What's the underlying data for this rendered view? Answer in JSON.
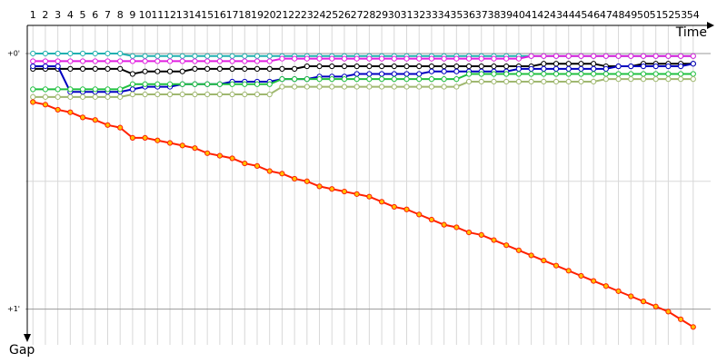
{
  "chart_data": {
    "type": "line",
    "x_label": "Time",
    "y_label": "Gap",
    "x": [
      1,
      2,
      3,
      4,
      5,
      6,
      7,
      8,
      9,
      10,
      11,
      12,
      13,
      14,
      15,
      16,
      17,
      18,
      19,
      20,
      21,
      22,
      23,
      24,
      25,
      26,
      27,
      28,
      29,
      30,
      31,
      32,
      33,
      34,
      35,
      36,
      37,
      38,
      39,
      40,
      41,
      42,
      43,
      44,
      45,
      46,
      47,
      48,
      49,
      50,
      51,
      52,
      53,
      54
    ],
    "xlim": [
      0.4,
      55.4
    ],
    "ylim": [
      -0.11,
      1.14
    ],
    "yticks": [
      {
        "value": 0,
        "label": "+0'"
      },
      {
        "value": 1,
        "label": "+1'"
      }
    ],
    "minor_yticks": [
      0.5
    ],
    "grid": true,
    "series": [
      {
        "color": "#20b0b0",
        "marker": "#ffffff",
        "values": [
          0,
          0,
          0,
          0,
          0,
          0,
          0,
          0,
          0.01,
          0.01,
          0.01,
          0.01,
          0.01,
          0.01,
          0.01,
          0.01,
          0.01,
          0.01,
          0.01,
          0.01,
          0.01,
          0.01,
          0.01,
          0.01,
          0.01,
          0.01,
          0.01,
          0.01,
          0.01,
          0.01,
          0.01,
          0.01,
          0.01,
          0.01,
          0.01,
          0.01,
          0.01,
          0.01,
          0.01,
          0.01,
          0.01,
          0.01,
          0.01,
          0.01,
          0.01,
          0.01,
          0.01,
          0.01,
          0.01,
          0.01,
          0.01,
          0.01,
          0.01,
          0.01
        ]
      },
      {
        "color": "#e020e0",
        "marker": "#ffffff",
        "values": [
          0.03,
          0.03,
          0.03,
          0.03,
          0.03,
          0.03,
          0.03,
          0.03,
          0.03,
          0.03,
          0.03,
          0.03,
          0.03,
          0.03,
          0.03,
          0.03,
          0.03,
          0.03,
          0.03,
          0.03,
          0.02,
          0.02,
          0.02,
          0.02,
          0.02,
          0.02,
          0.02,
          0.02,
          0.02,
          0.02,
          0.02,
          0.02,
          0.02,
          0.02,
          0.02,
          0.02,
          0.02,
          0.02,
          0.02,
          0.02,
          0.01,
          0.01,
          0.01,
          0.01,
          0.01,
          0.01,
          0.01,
          0.01,
          0.01,
          0.01,
          0.01,
          0.01,
          0.01,
          0.01
        ]
      },
      {
        "color": "#000000",
        "marker": "#ffffff",
        "values": [
          0.06,
          0.06,
          0.06,
          0.06,
          0.06,
          0.06,
          0.06,
          0.06,
          0.08,
          0.07,
          0.07,
          0.07,
          0.07,
          0.06,
          0.06,
          0.06,
          0.06,
          0.06,
          0.06,
          0.06,
          0.06,
          0.06,
          0.05,
          0.05,
          0.05,
          0.05,
          0.05,
          0.05,
          0.05,
          0.05,
          0.05,
          0.05,
          0.05,
          0.05,
          0.05,
          0.05,
          0.05,
          0.05,
          0.05,
          0.05,
          0.05,
          0.04,
          0.04,
          0.04,
          0.04,
          0.04,
          0.05,
          0.05,
          0.05,
          0.04,
          0.04,
          0.04,
          0.04,
          0.04
        ]
      },
      {
        "color": "#0000c0",
        "marker": "#ffffff",
        "values": [
          0.05,
          0.05,
          0.05,
          0.15,
          0.15,
          0.15,
          0.15,
          0.15,
          0.14,
          0.13,
          0.13,
          0.13,
          0.12,
          0.12,
          0.12,
          0.12,
          0.11,
          0.11,
          0.11,
          0.11,
          0.1,
          0.1,
          0.1,
          0.09,
          0.09,
          0.09,
          0.08,
          0.08,
          0.08,
          0.08,
          0.08,
          0.08,
          0.07,
          0.07,
          0.07,
          0.07,
          0.07,
          0.07,
          0.07,
          0.06,
          0.06,
          0.06,
          0.06,
          0.06,
          0.06,
          0.06,
          0.06,
          0.05,
          0.05,
          0.05,
          0.05,
          0.05,
          0.05,
          0.04
        ]
      },
      {
        "color": "#20c040",
        "marker": "#ffffff",
        "values": [
          0.14,
          0.14,
          0.14,
          0.14,
          0.14,
          0.14,
          0.14,
          0.14,
          0.12,
          0.12,
          0.12,
          0.12,
          0.12,
          0.12,
          0.12,
          0.12,
          0.12,
          0.12,
          0.12,
          0.12,
          0.1,
          0.1,
          0.1,
          0.1,
          0.1,
          0.1,
          0.1,
          0.1,
          0.1,
          0.1,
          0.1,
          0.1,
          0.1,
          0.1,
          0.1,
          0.08,
          0.08,
          0.08,
          0.08,
          0.08,
          0.08,
          0.08,
          0.08,
          0.08,
          0.08,
          0.08,
          0.08,
          0.08,
          0.08,
          0.08,
          0.08,
          0.08,
          0.08,
          0.08
        ]
      },
      {
        "color": "#a0b870",
        "marker": "#ffffff",
        "values": [
          0.17,
          0.17,
          0.17,
          0.17,
          0.17,
          0.17,
          0.17,
          0.17,
          0.16,
          0.16,
          0.16,
          0.16,
          0.16,
          0.16,
          0.16,
          0.16,
          0.16,
          0.16,
          0.16,
          0.16,
          0.13,
          0.13,
          0.13,
          0.13,
          0.13,
          0.13,
          0.13,
          0.13,
          0.13,
          0.13,
          0.13,
          0.13,
          0.13,
          0.13,
          0.13,
          0.11,
          0.11,
          0.11,
          0.11,
          0.11,
          0.11,
          0.11,
          0.11,
          0.11,
          0.11,
          0.11,
          0.1,
          0.1,
          0.1,
          0.1,
          0.1,
          0.1,
          0.1,
          0.1
        ]
      },
      {
        "color": "#ff2000",
        "marker": "#ffc000",
        "values": [
          0.19,
          0.2,
          0.22,
          0.23,
          0.25,
          0.26,
          0.28,
          0.29,
          0.33,
          0.33,
          0.34,
          0.35,
          0.36,
          0.37,
          0.39,
          0.4,
          0.41,
          0.43,
          0.44,
          0.46,
          0.47,
          0.49,
          0.5,
          0.52,
          0.53,
          0.54,
          0.55,
          0.56,
          0.58,
          0.6,
          0.61,
          0.63,
          0.65,
          0.67,
          0.68,
          0.7,
          0.71,
          0.73,
          0.75,
          0.77,
          0.79,
          0.81,
          0.83,
          0.85,
          0.87,
          0.89,
          0.91,
          0.93,
          0.95,
          0.97,
          0.99,
          1.01,
          1.04,
          1.07
        ]
      }
    ]
  }
}
